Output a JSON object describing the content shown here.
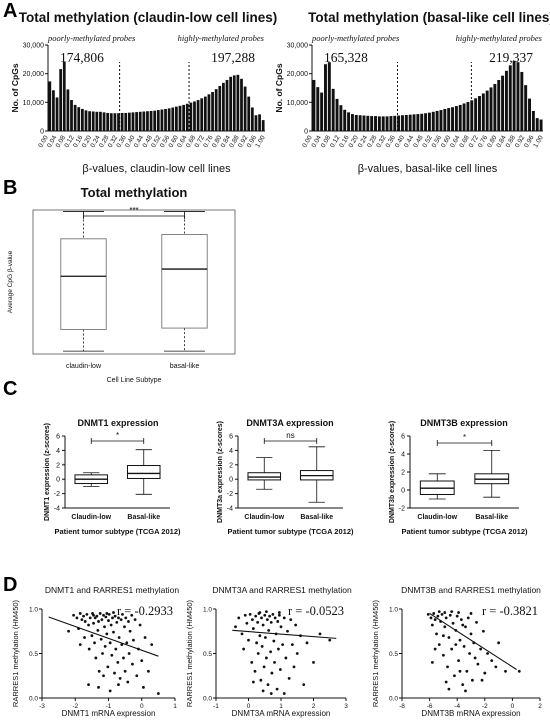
{
  "panels": {
    "a": {
      "letter": "A"
    },
    "b": {
      "letter": "B"
    },
    "c": {
      "letter": "C"
    },
    "d": {
      "letter": "D"
    }
  },
  "chart_data": [
    {
      "id": "a1",
      "type": "bar",
      "title": "Total methylation (claudin-low cell lines)",
      "xlabel": "β-values, claudin-low cell lines",
      "ylabel": "No. of CpGs",
      "ylim": [
        0,
        30000
      ],
      "yticks": [
        "0",
        "10,000",
        "20,000",
        "30,000"
      ],
      "xticks": [
        "0.00",
        "0.04",
        "0.08",
        "0.12",
        "0.16",
        "0.20",
        "0.24",
        "0.28",
        "0.32",
        "0.36",
        "0.40",
        "0.44",
        "0.48",
        "0.52",
        "0.56",
        "0.60",
        "0.64",
        "0.68",
        "0.72",
        "0.76",
        "0.80",
        "0.84",
        "0.88",
        "0.92",
        "0.96",
        "1.00"
      ],
      "values": [
        17300,
        14200,
        11700,
        21600,
        24200,
        14500,
        10800,
        9100,
        8300,
        7700,
        7200,
        6900,
        6800,
        6700,
        6700,
        6500,
        6300,
        6200,
        6200,
        6200,
        6300,
        6300,
        6400,
        6500,
        6600,
        6700,
        6800,
        6900,
        7000,
        7100,
        7300,
        7500,
        7700,
        7900,
        8200,
        8500,
        8800,
        9100,
        9500,
        9900,
        10300,
        10800,
        11400,
        12000,
        12800,
        13600,
        14600,
        15700,
        16800,
        17800,
        18900,
        19400,
        19600,
        18200,
        15500,
        12000,
        8200,
        5500,
        5800,
        3800
      ],
      "cutoffs": [
        0.33,
        0.65
      ],
      "annotations": [
        {
          "label": "poorly-methylated probes",
          "value": "174,806"
        },
        {
          "label": "highly-methylated probes",
          "value": "197,288"
        }
      ]
    },
    {
      "id": "a2",
      "type": "bar",
      "title": "Total methylation (basal-like cell lines)",
      "xlabel": "β-values, basal-like cell lines",
      "ylabel": "No. of CpGs",
      "ylim": [
        0,
        30000
      ],
      "yticks": [
        "0",
        "10,000",
        "20,000",
        "30,000"
      ],
      "xticks": [
        "0.00",
        "0.04",
        "0.08",
        "0.12",
        "0.16",
        "0.20",
        "0.24",
        "0.28",
        "0.32",
        "0.36",
        "0.40",
        "0.44",
        "0.48",
        "0.52",
        "0.56",
        "0.60",
        "0.64",
        "0.68",
        "0.72",
        "0.76",
        "0.80",
        "0.84",
        "0.88",
        "0.92",
        "0.96",
        "1.00"
      ],
      "values": [
        17800,
        15300,
        13400,
        23300,
        24000,
        14700,
        11200,
        9000,
        7400,
        6500,
        5900,
        5600,
        5500,
        5400,
        5300,
        5200,
        5200,
        5100,
        5100,
        5100,
        5200,
        5300,
        5400,
        5500,
        5600,
        5700,
        5800,
        5900,
        6000,
        6200,
        6400,
        6700,
        7000,
        7300,
        7700,
        8000,
        8300,
        8700,
        9100,
        9600,
        10100,
        10700,
        11400,
        12200,
        13100,
        14100,
        15200,
        16400,
        17800,
        19300,
        21000,
        22900,
        24500,
        24000,
        20600,
        16000,
        11300,
        7000,
        4500,
        4000
      ],
      "cutoffs": [
        0.37,
        0.69
      ],
      "annotations": [
        {
          "label": "poorly-methylated probes",
          "value": "165,328"
        },
        {
          "label": "highly-methylated probes",
          "value": "219,337"
        }
      ]
    },
    {
      "id": "b",
      "type": "box",
      "title": "Total methylation",
      "xlabel": "Cell Line Subtype",
      "ylabel": "Average CpG β-value",
      "categories": [
        "claudin-low",
        "basal-like"
      ],
      "ylim": [
        0,
        1
      ],
      "boxes": [
        {
          "min": 0.02,
          "q1": 0.17,
          "median": 0.54,
          "q3": 0.8,
          "max": 0.99
        },
        {
          "min": 0.02,
          "q1": 0.18,
          "median": 0.59,
          "q3": 0.83,
          "max": 0.99
        }
      ],
      "significance": "***"
    },
    {
      "id": "c1",
      "type": "box",
      "title": "DNMT1 expression",
      "xlabel": "Patient tumor subtype (TCGA 2012)",
      "ylabel": "DNMT1 expression (z-scores)",
      "categories": [
        "Claudin-low",
        "Basal-like"
      ],
      "ylim": [
        -4,
        6
      ],
      "yticks": [
        "-4",
        "-2",
        "0",
        "2",
        "4",
        "6"
      ],
      "boxes": [
        {
          "min": -1.0,
          "q1": -0.6,
          "median": 0.0,
          "q3": 0.6,
          "max": 0.9
        },
        {
          "min": -2.1,
          "q1": 0.1,
          "median": 0.8,
          "q3": 1.9,
          "max": 4.1
        }
      ],
      "significance": "*"
    },
    {
      "id": "c2",
      "type": "box",
      "title": "DNMT3A expression",
      "xlabel": "Patient tumor subtype (TCGA 2012)",
      "ylabel": "DNMT3a expression (z-scores)",
      "categories": [
        "Claudin-low",
        "Basal-like"
      ],
      "ylim": [
        -4,
        6
      ],
      "yticks": [
        "-4",
        "-2",
        "0",
        "2",
        "4",
        "6"
      ],
      "boxes": [
        {
          "min": -1.4,
          "q1": -0.1,
          "median": 0.3,
          "q3": 0.9,
          "max": 3.0
        },
        {
          "min": -3.2,
          "q1": -0.1,
          "median": 0.5,
          "q3": 1.2,
          "max": 4.5
        }
      ],
      "significance": "ns"
    },
    {
      "id": "c3",
      "type": "box",
      "title": "DNMT3B expression",
      "xlabel": "Patient tumor subtype (TCGA 2012)",
      "ylabel": "DNMT3b expression (z-scores)",
      "categories": [
        "Claudin-low",
        "Basal-like"
      ],
      "ylim": [
        -2,
        6
      ],
      "yticks": [
        "-2",
        "0",
        "2",
        "4",
        "6"
      ],
      "boxes": [
        {
          "min": -1.0,
          "q1": -0.5,
          "median": 0.2,
          "q3": 1.0,
          "max": 1.8
        },
        {
          "min": -0.8,
          "q1": 0.7,
          "median": 1.2,
          "q3": 1.8,
          "max": 4.4
        }
      ],
      "significance": "*"
    },
    {
      "id": "d1",
      "type": "scatter",
      "title": "DNMT1 and RARRES1 methylation",
      "xlabel": "DNMT1 mRNA expression",
      "ylabel": "RARRES1 methylation (HM450)",
      "xlim": [
        -3,
        1
      ],
      "ylim": [
        0,
        1
      ],
      "xticks": [
        "-3",
        "-2",
        "-1",
        "0",
        "1"
      ],
      "yticks": [
        "0.0",
        "0.5",
        "1.0"
      ],
      "r": "r = -0.2933",
      "trend": [
        [
          -2.8,
          0.91
        ],
        [
          0.5,
          0.47
        ]
      ],
      "points": [
        [
          -2.05,
          0.93
        ],
        [
          -1.95,
          0.9
        ],
        [
          -1.9,
          0.78
        ],
        [
          -1.85,
          0.95
        ],
        [
          -1.8,
          0.88
        ],
        [
          -1.75,
          0.92
        ],
        [
          -1.72,
          0.68
        ],
        [
          -1.7,
          0.86
        ],
        [
          -1.65,
          0.94
        ],
        [
          -1.6,
          0.82
        ],
        [
          -1.58,
          0.55
        ],
        [
          -1.55,
          0.9
        ],
        [
          -1.5,
          0.7
        ],
        [
          -1.48,
          0.95
        ],
        [
          -1.45,
          0.84
        ],
        [
          -1.42,
          0.62
        ],
        [
          -1.4,
          0.9
        ],
        [
          -1.38,
          0.45
        ],
        [
          -1.35,
          0.92
        ],
        [
          -1.32,
          0.76
        ],
        [
          -1.3,
          0.86
        ],
        [
          -1.28,
          0.3
        ],
        [
          -1.25,
          0.95
        ],
        [
          -1.22,
          0.66
        ],
        [
          -1.2,
          0.88
        ],
        [
          -1.18,
          0.5
        ],
        [
          -1.15,
          0.93
        ],
        [
          -1.12,
          0.8
        ],
        [
          -1.1,
          0.58
        ],
        [
          -1.08,
          0.91
        ],
        [
          -1.05,
          0.72
        ],
        [
          -1.02,
          0.35
        ],
        [
          -1.0,
          0.87
        ],
        [
          -0.98,
          0.94
        ],
        [
          -0.95,
          0.62
        ],
        [
          -0.92,
          0.82
        ],
        [
          -0.9,
          0.48
        ],
        [
          -0.88,
          0.9
        ],
        [
          -0.85,
          0.74
        ],
        [
          -0.82,
          0.28
        ],
        [
          -0.8,
          0.92
        ],
        [
          -0.78,
          0.55
        ],
        [
          -0.75,
          0.85
        ],
        [
          -0.72,
          0.4
        ],
        [
          -0.7,
          0.9
        ],
        [
          -0.68,
          0.68
        ],
        [
          -0.65,
          0.22
        ],
        [
          -0.62,
          0.88
        ],
        [
          -0.6,
          0.6
        ],
        [
          -0.58,
          0.94
        ],
        [
          -0.55,
          0.45
        ],
        [
          -0.52,
          0.8
        ],
        [
          -0.5,
          0.3
        ],
        [
          -0.48,
          0.9
        ],
        [
          -0.45,
          0.62
        ],
        [
          -0.42,
          0.18
        ],
        [
          -0.4,
          0.86
        ],
        [
          -0.38,
          0.5
        ],
        [
          -0.35,
          0.75
        ],
        [
          -0.3,
          0.93
        ],
        [
          -0.28,
          0.38
        ],
        [
          -0.25,
          0.65
        ],
        [
          -0.2,
          0.88
        ],
        [
          -0.15,
          0.25
        ],
        [
          -0.1,
          0.55
        ],
        [
          -0.05,
          0.82
        ],
        [
          0.0,
          0.42
        ],
        [
          0.05,
          0.12
        ],
        [
          0.1,
          0.68
        ],
        [
          0.2,
          0.3
        ],
        [
          0.3,
          0.6
        ],
        [
          -1.6,
          0.15
        ],
        [
          -1.3,
          0.12
        ],
        [
          -0.95,
          0.08
        ],
        [
          -2.2,
          0.75
        ],
        [
          -1.85,
          0.6
        ],
        [
          -1.15,
          0.25
        ],
        [
          -0.7,
          0.15
        ],
        [
          0.5,
          0.05
        ],
        [
          -1.45,
          0.93
        ],
        [
          -1.05,
          0.95
        ],
        [
          -0.85,
          0.96
        ]
      ]
    },
    {
      "id": "d2",
      "type": "scatter",
      "title": "DNMT3A and RARRES1 methylation",
      "xlabel": "DNMT3A mRNA expression",
      "ylabel": "RARRES1 methylation (HM450)",
      "xlim": [
        -1,
        3
      ],
      "ylim": [
        0,
        1
      ],
      "xticks": [
        "-1",
        "0",
        "1",
        "2",
        "3"
      ],
      "yticks": [
        "0.0",
        "0.5",
        "1.0"
      ],
      "r": "r = -0.0523",
      "trend": [
        [
          -0.5,
          0.76
        ],
        [
          2.7,
          0.67
        ]
      ],
      "points": [
        [
          -0.3,
          0.9
        ],
        [
          -0.2,
          0.72
        ],
        [
          -0.15,
          0.55
        ],
        [
          -0.1,
          0.93
        ],
        [
          -0.05,
          0.84
        ],
        [
          0.0,
          0.65
        ],
        [
          0.05,
          0.94
        ],
        [
          0.1,
          0.4
        ],
        [
          0.12,
          0.88
        ],
        [
          0.15,
          0.78
        ],
        [
          0.2,
          0.3
        ],
        [
          0.22,
          0.92
        ],
        [
          0.25,
          0.62
        ],
        [
          0.28,
          0.85
        ],
        [
          0.3,
          0.5
        ],
        [
          0.32,
          0.95
        ],
        [
          0.35,
          0.7
        ],
        [
          0.38,
          0.2
        ],
        [
          0.4,
          0.9
        ],
        [
          0.42,
          0.58
        ],
        [
          0.45,
          0.82
        ],
        [
          0.48,
          0.35
        ],
        [
          0.5,
          0.93
        ],
        [
          0.52,
          0.68
        ],
        [
          0.55,
          0.45
        ],
        [
          0.58,
          0.88
        ],
        [
          0.6,
          0.15
        ],
        [
          0.62,
          0.76
        ],
        [
          0.65,
          0.92
        ],
        [
          0.68,
          0.52
        ],
        [
          0.7,
          0.85
        ],
        [
          0.72,
          0.28
        ],
        [
          0.75,
          0.94
        ],
        [
          0.78,
          0.64
        ],
        [
          0.8,
          0.4
        ],
        [
          0.82,
          0.9
        ],
        [
          0.85,
          0.72
        ],
        [
          0.88,
          0.1
        ],
        [
          0.9,
          0.86
        ],
        [
          0.92,
          0.55
        ],
        [
          0.95,
          0.93
        ],
        [
          0.98,
          0.32
        ],
        [
          1.0,
          0.8
        ],
        [
          1.05,
          0.6
        ],
        [
          1.1,
          0.9
        ],
        [
          1.15,
          0.45
        ],
        [
          1.2,
          0.75
        ],
        [
          1.25,
          0.22
        ],
        [
          1.3,
          0.88
        ],
        [
          1.35,
          0.6
        ],
        [
          1.4,
          0.35
        ],
        [
          1.45,
          0.82
        ],
        [
          1.5,
          0.5
        ],
        [
          1.6,
          0.7
        ],
        [
          1.7,
          0.15
        ],
        [
          1.8,
          0.62
        ],
        [
          2.0,
          0.4
        ],
        [
          2.2,
          0.72
        ],
        [
          2.5,
          0.65
        ],
        [
          0.45,
          0.08
        ],
        [
          0.7,
          0.05
        ],
        [
          0.35,
          0.96
        ],
        [
          0.55,
          0.97
        ],
        [
          0.95,
          0.96
        ],
        [
          -0.4,
          0.8
        ],
        [
          1.1,
          0.05
        ],
        [
          0.15,
          0.18
        ]
      ]
    },
    {
      "id": "d3",
      "type": "scatter",
      "title": "DNMT3B and RARRES1 methylation",
      "xlabel": "DNMT3B mRNA expression",
      "ylabel": "RARRES1 methylation (HM450)",
      "xlim": [
        -8,
        2
      ],
      "ylim": [
        0,
        1
      ],
      "xticks": [
        "-8",
        "-6",
        "-4",
        "-2",
        "0",
        "2"
      ],
      "yticks": [
        "0.0",
        "0.5",
        "1.0"
      ],
      "r": "r = -0.3821",
      "trend": [
        [
          -6.0,
          0.95
        ],
        [
          0.3,
          0.32
        ]
      ],
      "points": [
        [
          -6.1,
          0.94
        ],
        [
          -5.9,
          0.9
        ],
        [
          -5.8,
          0.82
        ],
        [
          -5.7,
          0.95
        ],
        [
          -5.6,
          0.88
        ],
        [
          -5.5,
          0.72
        ],
        [
          -5.4,
          0.92
        ],
        [
          -5.3,
          0.6
        ],
        [
          -5.2,
          0.86
        ],
        [
          -5.1,
          0.94
        ],
        [
          -5.0,
          0.48
        ],
        [
          -4.9,
          0.8
        ],
        [
          -4.8,
          0.9
        ],
        [
          -4.7,
          0.35
        ],
        [
          -4.6,
          0.68
        ],
        [
          -4.5,
          0.93
        ],
        [
          -4.4,
          0.55
        ],
        [
          -4.3,
          0.84
        ],
        [
          -4.2,
          0.25
        ],
        [
          -4.1,
          0.76
        ],
        [
          -4.0,
          0.92
        ],
        [
          -3.9,
          0.42
        ],
        [
          -3.8,
          0.65
        ],
        [
          -3.7,
          0.88
        ],
        [
          -3.6,
          0.15
        ],
        [
          -3.5,
          0.58
        ],
        [
          -3.4,
          0.8
        ],
        [
          -3.3,
          0.3
        ],
        [
          -3.2,
          0.9
        ],
        [
          -3.1,
          0.5
        ],
        [
          -3.0,
          0.72
        ],
        [
          -2.9,
          0.2
        ],
        [
          -2.8,
          0.62
        ],
        [
          -2.6,
          0.85
        ],
        [
          -2.5,
          0.38
        ],
        [
          -2.3,
          0.55
        ],
        [
          -2.1,
          0.75
        ],
        [
          -2.0,
          0.28
        ],
        [
          -1.8,
          0.5
        ],
        [
          -1.5,
          0.42
        ],
        [
          -1.2,
          0.35
        ],
        [
          -1.0,
          0.62
        ],
        [
          -0.5,
          0.3
        ],
        [
          0.5,
          0.3
        ],
        [
          -5.3,
          0.97
        ],
        [
          -4.9,
          0.96
        ],
        [
          -4.4,
          0.97
        ],
        [
          -3.9,
          0.96
        ],
        [
          -5.6,
          0.55
        ],
        [
          -4.6,
          0.1
        ],
        [
          -3.4,
          0.08
        ],
        [
          -2.7,
          0.45
        ],
        [
          -4.1,
          0.6
        ],
        [
          -3.6,
          0.82
        ],
        [
          -5.0,
          0.7
        ],
        [
          -2.2,
          0.2
        ],
        [
          -4.8,
          0.18
        ],
        [
          -3.0,
          0.95
        ],
        [
          -3.8,
          0.3
        ],
        [
          -5.8,
          0.4
        ]
      ]
    }
  ]
}
